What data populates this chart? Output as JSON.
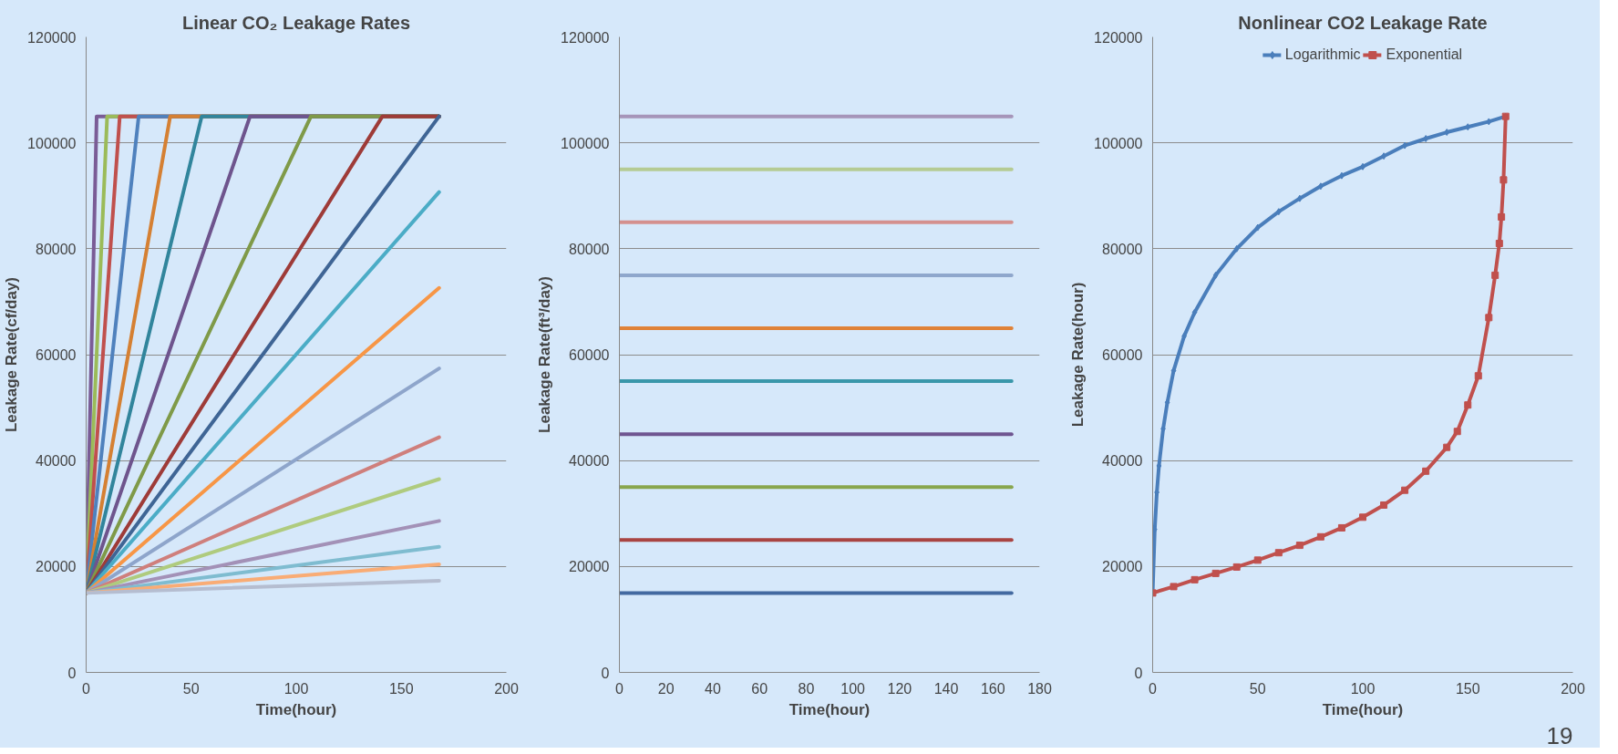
{
  "chart_data": [
    {
      "type": "line",
      "title": "Linear CO₂ Leakage Rates",
      "xlabel": "Time(hour)",
      "ylabel": "Leakage Rate(cf/day)",
      "xlim": [
        0,
        200
      ],
      "xticks": [
        0,
        50,
        100,
        150,
        200
      ],
      "ylim": [
        0,
        120000
      ],
      "yticks": [
        0,
        20000,
        40000,
        60000,
        80000,
        100000,
        120000
      ],
      "grid": "y",
      "series": [
        {
          "color": "#7a5c96",
          "x": [
            0,
            5,
            168
          ],
          "values": [
            15000,
            105000,
            105000
          ]
        },
        {
          "color": "#9bbb59",
          "x": [
            0,
            10,
            168
          ],
          "values": [
            15000,
            105000,
            105000
          ]
        },
        {
          "color": "#c0504d",
          "x": [
            0,
            16,
            168
          ],
          "values": [
            15000,
            105000,
            105000
          ]
        },
        {
          "color": "#4f81bd",
          "x": [
            0,
            25,
            168
          ],
          "values": [
            15000,
            105000,
            105000
          ]
        },
        {
          "color": "#d58033",
          "x": [
            0,
            40,
            168
          ],
          "values": [
            15000,
            105000,
            105000
          ]
        },
        {
          "color": "#31859c",
          "x": [
            0,
            55,
            168
          ],
          "values": [
            15000,
            105000,
            105000
          ]
        },
        {
          "color": "#6e548d",
          "x": [
            0,
            78,
            168
          ],
          "values": [
            15000,
            105000,
            105000
          ]
        },
        {
          "color": "#7f9a48",
          "x": [
            0,
            107,
            168
          ],
          "values": [
            15000,
            105000,
            105000
          ]
        },
        {
          "color": "#9e3b38",
          "x": [
            0,
            141,
            168
          ],
          "values": [
            15000,
            105000,
            105000
          ]
        },
        {
          "color": "#3f6595",
          "x": [
            0,
            168
          ],
          "values": [
            15000,
            105000
          ]
        },
        {
          "color": "#4bacc6",
          "x": [
            0,
            168
          ],
          "values": [
            15000,
            90700
          ]
        },
        {
          "color": "#f79646",
          "x": [
            0,
            168
          ],
          "values": [
            15000,
            72600
          ]
        },
        {
          "color": "#8ea5cb",
          "x": [
            0,
            168
          ],
          "values": [
            15000,
            57400
          ]
        },
        {
          "color": "#cf7f7c",
          "x": [
            0,
            168
          ],
          "values": [
            15000,
            44400
          ]
        },
        {
          "color": "#afcb7e",
          "x": [
            0,
            168
          ],
          "values": [
            15000,
            36500
          ]
        },
        {
          "color": "#a391b7",
          "x": [
            0,
            168
          ],
          "values": [
            15000,
            28600
          ]
        },
        {
          "color": "#7fbcd0",
          "x": [
            0,
            168
          ],
          "values": [
            15000,
            23700
          ]
        },
        {
          "color": "#f9ac75",
          "x": [
            0,
            168
          ],
          "values": [
            15000,
            20400
          ]
        },
        {
          "color": "#b5bdd0",
          "x": [
            0,
            168
          ],
          "values": [
            15000,
            17300
          ]
        }
      ]
    },
    {
      "type": "line",
      "xlabel": "Time(hour)",
      "ylabel": "Leakage Rate(ft³/day)",
      "xlim": [
        0,
        180
      ],
      "xticks": [
        0,
        20,
        40,
        60,
        80,
        100,
        120,
        140,
        160,
        180
      ],
      "ylim": [
        0,
        120000
      ],
      "yticks": [
        0,
        20000,
        40000,
        60000,
        80000,
        100000,
        120000
      ],
      "grid": "y",
      "series": [
        {
          "color": "#4369a0",
          "x": [
            0,
            168
          ],
          "values": [
            15000,
            15000
          ]
        },
        {
          "color": "#a94442",
          "x": [
            0,
            168
          ],
          "values": [
            25000,
            25000
          ]
        },
        {
          "color": "#88a64d",
          "x": [
            0,
            168
          ],
          "values": [
            35000,
            35000
          ]
        },
        {
          "color": "#6f5590",
          "x": [
            0,
            168
          ],
          "values": [
            45000,
            45000
          ]
        },
        {
          "color": "#3a97aa",
          "x": [
            0,
            168
          ],
          "values": [
            55000,
            55000
          ]
        },
        {
          "color": "#e08238",
          "x": [
            0,
            168
          ],
          "values": [
            65000,
            65000
          ]
        },
        {
          "color": "#8fa7cc",
          "x": [
            0,
            168
          ],
          "values": [
            75000,
            75000
          ]
        },
        {
          "color": "#d4908e",
          "x": [
            0,
            168
          ],
          "values": [
            85000,
            85000
          ]
        },
        {
          "color": "#b5cb93",
          "x": [
            0,
            168
          ],
          "values": [
            95000,
            95000
          ]
        },
        {
          "color": "#a695b9",
          "x": [
            0,
            168
          ],
          "values": [
            105000,
            105000
          ]
        }
      ]
    },
    {
      "type": "line",
      "title": "Nonlinear CO2 Leakage Rate",
      "xlabel": "Time(hour)",
      "ylabel": "Leakage Rate(hour)",
      "xlim": [
        0,
        200
      ],
      "xticks": [
        0,
        50,
        100,
        150,
        200
      ],
      "ylim": [
        0,
        120000
      ],
      "yticks": [
        0,
        20000,
        40000,
        60000,
        80000,
        100000,
        120000
      ],
      "grid": "y",
      "legend": "top",
      "annotations": [
        "19"
      ],
      "series": [
        {
          "name": "Logarithmic",
          "color": "#4a7ebb",
          "marker": "diamond",
          "x": [
            0,
            1,
            2,
            3,
            5,
            7,
            10,
            15,
            20,
            30,
            40,
            50,
            60,
            70,
            80,
            90,
            100,
            110,
            120,
            130,
            140,
            150,
            160,
            168
          ],
          "values": [
            15000,
            27000,
            34000,
            39000,
            46000,
            51000,
            57000,
            63500,
            68000,
            75000,
            80000,
            84000,
            87000,
            89500,
            91800,
            93800,
            95500,
            97500,
            99500,
            100800,
            102000,
            103000,
            104000,
            105000
          ]
        },
        {
          "name": "Exponential",
          "color": "#c0504d",
          "marker": "square",
          "x": [
            0,
            10,
            20,
            30,
            40,
            50,
            60,
            70,
            80,
            90,
            100,
            110,
            120,
            130,
            140,
            145,
            150,
            155,
            160,
            163,
            165,
            166,
            167,
            168
          ],
          "values": [
            15000,
            16200,
            17500,
            18700,
            19900,
            21200,
            22600,
            24000,
            25600,
            27300,
            29300,
            31600,
            34400,
            38000,
            42500,
            45500,
            50500,
            56000,
            67000,
            75000,
            81000,
            86000,
            93000,
            105000
          ]
        }
      ]
    }
  ]
}
